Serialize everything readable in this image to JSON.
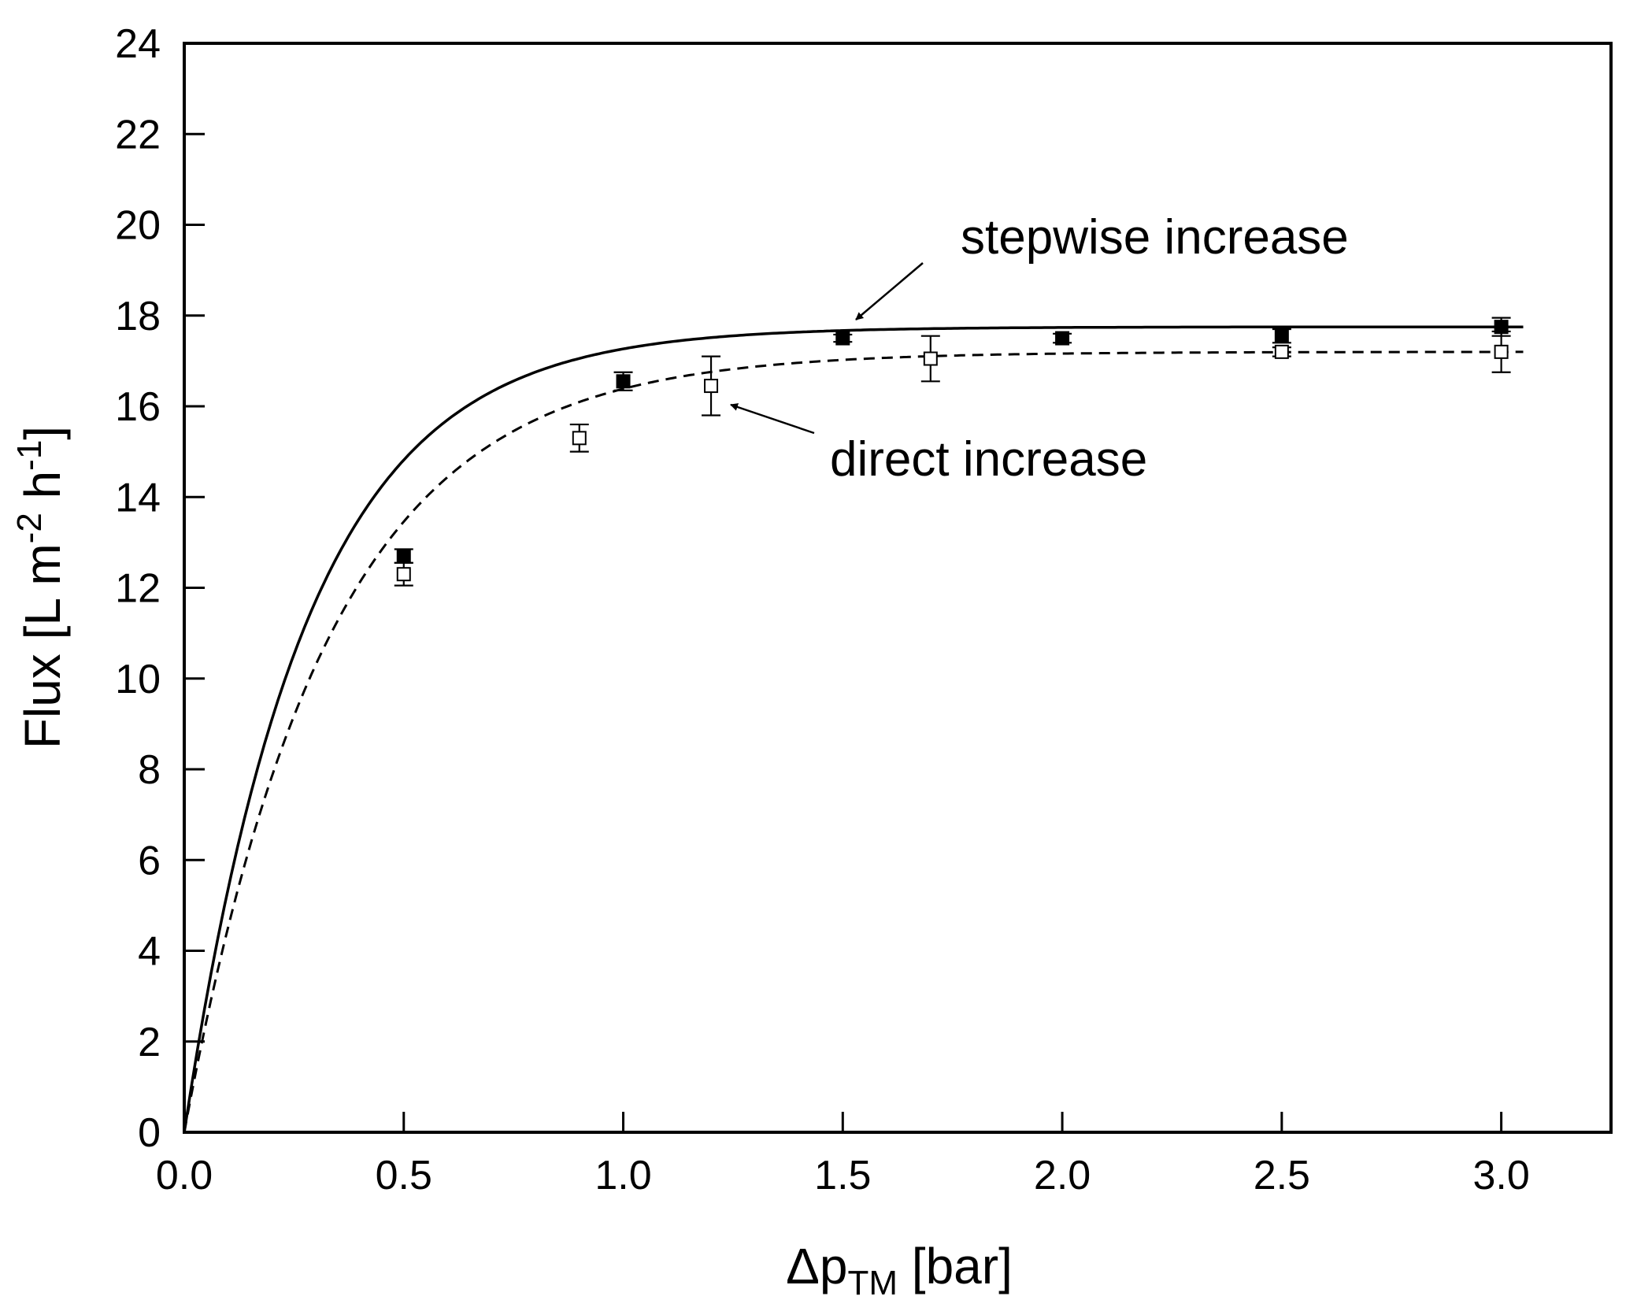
{
  "chart_data": {
    "type": "line",
    "title": "",
    "xlabel": {
      "prefix": "Δp",
      "subscript": "TM",
      "suffix": " [bar]"
    },
    "ylabel": {
      "text": "Flux [L m",
      "sup1": "-2",
      "mid": " h",
      "sup2": "-1",
      "end": "]"
    },
    "xlim": [
      0,
      3.25
    ],
    "ylim": [
      0,
      24
    ],
    "xticks": [
      0.0,
      0.5,
      1.0,
      1.5,
      2.0,
      2.5,
      3.0
    ],
    "xtick_labels": [
      "0.0",
      "0.5",
      "1.0",
      "1.5",
      "2.0",
      "2.5",
      "3.0"
    ],
    "yticks": [
      0,
      2,
      4,
      6,
      8,
      10,
      12,
      14,
      16,
      18,
      20,
      22,
      24
    ],
    "ytick_labels": [
      "0",
      "2",
      "4",
      "6",
      "8",
      "10",
      "12",
      "14",
      "16",
      "18",
      "20",
      "22",
      "24"
    ],
    "grid": false,
    "series": [
      {
        "name": "stepwise increase",
        "marker": "filled-square",
        "line_style": "solid",
        "color": "#000000",
        "points": [
          {
            "x": 0.5,
            "y": 12.7,
            "err": 0.15
          },
          {
            "x": 1.0,
            "y": 16.55,
            "err": 0.2
          },
          {
            "x": 1.5,
            "y": 17.5,
            "err": 0.08
          },
          {
            "x": 2.0,
            "y": 17.5,
            "err": 0.1
          },
          {
            "x": 2.5,
            "y": 17.55,
            "err": 0.15
          },
          {
            "x": 3.0,
            "y": 17.75,
            "err": 0.2
          }
        ],
        "fit": {
          "model": "saturation",
          "plateau": 17.75,
          "k": 3.6
        }
      },
      {
        "name": "direct increase",
        "marker": "open-square",
        "line_style": "dashed",
        "color": "#000000",
        "points": [
          {
            "x": 0.5,
            "y": 12.3,
            "err": 0.25
          },
          {
            "x": 0.9,
            "y": 15.3,
            "err": 0.3
          },
          {
            "x": 1.2,
            "y": 16.45,
            "err": 0.65
          },
          {
            "x": 1.7,
            "y": 17.05,
            "err": 0.5
          },
          {
            "x": 2.5,
            "y": 17.2,
            "err": 0.1
          },
          {
            "x": 3.0,
            "y": 17.2,
            "err": 0.45
          }
        ],
        "fit": {
          "model": "saturation",
          "plateau": 17.2,
          "k": 3.05
        }
      }
    ],
    "annotations": [
      {
        "text": "stepwise increase",
        "series": 0,
        "points_to": {
          "x": 1.5,
          "y": 17.6
        }
      },
      {
        "text": "direct increase",
        "series": 1,
        "points_to": {
          "x": 1.22,
          "y": 16.4
        }
      }
    ]
  }
}
